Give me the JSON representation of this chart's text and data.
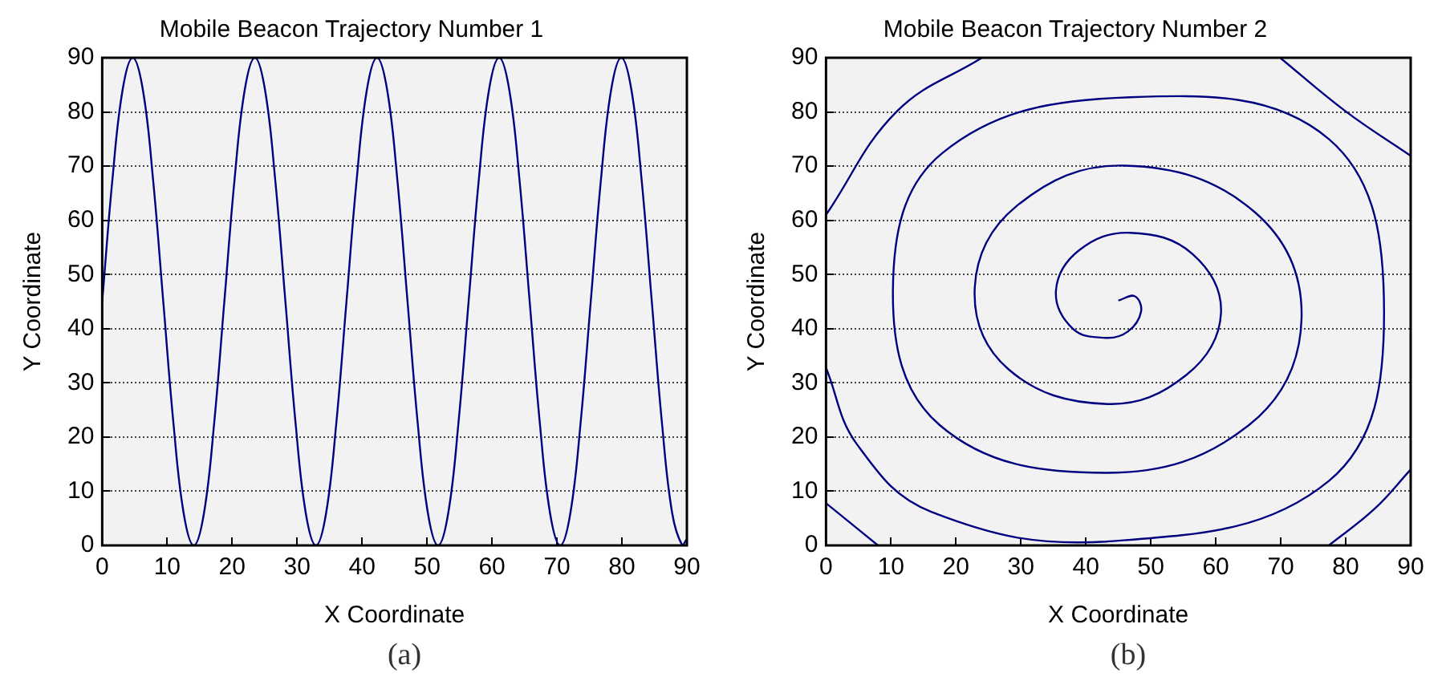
{
  "chart_data": [
    {
      "type": "line",
      "title": "Mobile Beacon Trajectory Number 1",
      "xlabel": "X Coordinate",
      "ylabel": "Y Coordinate",
      "annotations": [
        "(a)"
      ],
      "xlim": [
        0,
        90
      ],
      "ylim": [
        0,
        90
      ],
      "xticks": [
        0,
        10,
        20,
        30,
        40,
        50,
        60,
        70,
        80,
        90
      ],
      "yticks": [
        0,
        10,
        20,
        30,
        40,
        50,
        60,
        70,
        80,
        90
      ],
      "grid": "y",
      "marker": "none",
      "line_style": "solid",
      "series": [
        {
          "color": "#000080",
          "x": [
            0,
            1.57,
            3.13,
            4.7,
            6.27,
            7.83,
            9.4,
            10.97,
            12.53,
            14.1,
            15.67,
            17.23,
            18.8,
            20.37,
            21.93,
            23.5,
            25.07,
            26.63,
            28.2,
            29.77,
            31.33,
            32.9,
            34.47,
            36.03,
            37.6,
            39.17,
            40.73,
            42.3,
            43.87,
            45.43,
            47,
            48.57,
            50.13,
            51.7,
            53.27,
            54.83,
            56.4,
            57.97,
            59.53,
            61.1,
            62.67,
            64.23,
            65.8,
            67.37,
            68.93,
            70.5,
            72.07,
            73.63,
            75.2,
            76.77,
            78.33,
            79.9,
            81.47,
            83.03,
            84.6,
            86.17,
            87.73,
            89.3,
            90
          ],
          "values": [
            45,
            67.5,
            84,
            90,
            84,
            67.5,
            45,
            22.5,
            6,
            0,
            6,
            22.5,
            45,
            67.5,
            84,
            90,
            84,
            67.5,
            45,
            22.5,
            6,
            0,
            6,
            22.5,
            45,
            67.5,
            84,
            90,
            84,
            67.5,
            45,
            22.5,
            6,
            0,
            6,
            22.5,
            45,
            67.5,
            84,
            90,
            84,
            67.5,
            45,
            22.5,
            6,
            0,
            6,
            22.5,
            45,
            67.5,
            84,
            90,
            84,
            67.5,
            45,
            22.5,
            6,
            0,
            1.2
          ]
        }
      ]
    },
    {
      "type": "line",
      "title": "Mobile Beacon Trajectory Number 2",
      "xlabel": "X Coordinate",
      "ylabel": "Y Coordinate",
      "annotations": [
        "(b)"
      ],
      "xlim": [
        0,
        90
      ],
      "ylim": [
        0,
        90
      ],
      "xticks": [
        0,
        10,
        20,
        30,
        40,
        50,
        60,
        70,
        80,
        90
      ],
      "yticks": [
        0,
        10,
        20,
        30,
        40,
        50,
        60,
        70,
        80,
        90
      ],
      "grid": "y",
      "marker": "none",
      "line_style": "solid",
      "series": [
        {
          "color": "#000080",
          "x": [
            45,
            47.5,
            48.5,
            46.5,
            43.1,
            38,
            35.4,
            39,
            46.8,
            56.4,
            60.8,
            55.5,
            43.3,
            28,
            22.9,
            29.3,
            45.9,
            66,
            73.2,
            65.1,
            43.1,
            17.5,
            10.3,
            17.9,
            46.8,
            77.4,
            85.9,
            77.4,
            43.1,
            16.2,
            4.8,
            0
          ],
          "values": [
            45.2,
            46,
            43.2,
            39.5,
            38.3,
            40,
            47.1,
            54.5,
            57.7,
            53.8,
            42.9,
            31.5,
            26.1,
            32.6,
            47.6,
            62.6,
            70.1,
            61.5,
            41.9,
            22.2,
            13.4,
            22.2,
            47.1,
            72.4,
            82.7,
            75,
            42.9,
            11.9,
            0.7,
            6.2,
            18.6,
            32.8
          ]
        },
        {
          "color": "#000080",
          "x": [
            0,
            10.9,
            24
          ],
          "values": [
            61,
            80.1,
            90
          ]
        },
        {
          "color": "#000080",
          "x": [
            69.9,
            80,
            90
          ],
          "values": [
            90,
            80.1,
            71.9
          ]
        },
        {
          "color": "#000080",
          "x": [
            90,
            84.4,
            77.4
          ],
          "values": [
            14,
            6.7,
            0
          ]
        },
        {
          "color": "#000080",
          "x": [
            0,
            8
          ],
          "values": [
            7.8,
            0
          ]
        }
      ]
    }
  ]
}
